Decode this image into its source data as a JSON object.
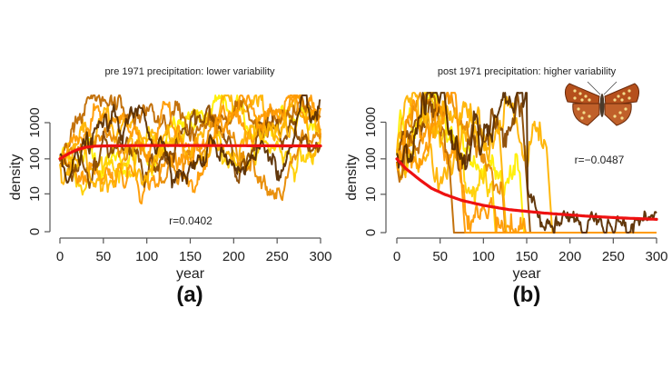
{
  "chart_data": [
    {
      "type": "line",
      "panel_label": "(a)",
      "title": "pre 1971 precipitation: lower variability",
      "xlabel": "year",
      "ylabel": "density",
      "xlim": [
        0,
        300
      ],
      "x_ticks": [
        0,
        50,
        100,
        150,
        200,
        250,
        300
      ],
      "y_scale": "log(1+density)",
      "y_ticks": [
        0,
        10,
        100,
        1000
      ],
      "annotation": "r=0.0402",
      "annotation_position": "bottom-center",
      "series_colors": [
        "#000000",
        "#5a2d00",
        "#8b4a00",
        "#c06a00",
        "#e88a00",
        "#ff9a00",
        "#ffb300",
        "#ffd000",
        "#ffee00"
      ],
      "mean_series": {
        "name": "mean",
        "color": "#ee1111",
        "x": [
          0,
          10,
          20,
          30,
          40,
          60,
          100,
          150,
          200,
          250,
          300
        ],
        "y": [
          100,
          140,
          180,
          210,
          225,
          230,
          235,
          235,
          232,
          230,
          228
        ]
      },
      "trajectory_count": 10,
      "trajectory_behavior": "persistent fluctuations between ~2 and ~8000, no extinction"
    },
    {
      "type": "line",
      "panel_label": "(b)",
      "title": "post 1971 precipitation: higher variability",
      "xlabel": "year",
      "ylabel": "density",
      "xlim": [
        0,
        300
      ],
      "x_ticks": [
        0,
        50,
        100,
        150,
        200,
        250,
        300
      ],
      "y_scale": "log(1+density)",
      "y_ticks": [
        0,
        10,
        100,
        1000
      ],
      "annotation": "r=−0.0487",
      "annotation_position": "right",
      "inset_image": "butterfly",
      "series_colors": [
        "#000000",
        "#5a2d00",
        "#8b4a00",
        "#c06a00",
        "#e88a00",
        "#ff9a00",
        "#ffb300",
        "#ffd000",
        "#ffee00"
      ],
      "mean_series": {
        "name": "mean",
        "color": "#ee1111",
        "x": [
          0,
          10,
          25,
          40,
          55,
          75,
          100,
          130,
          170,
          220,
          260,
          300
        ],
        "y": [
          100,
          55,
          28,
          15,
          10,
          6.5,
          4.5,
          3.2,
          2.4,
          1.8,
          1.5,
          1.3
        ]
      },
      "trajectory_count": 10,
      "trajectory_behavior": "most trajectories go extinct by year ~190; one black trajectory persists at low density to 300"
    }
  ]
}
